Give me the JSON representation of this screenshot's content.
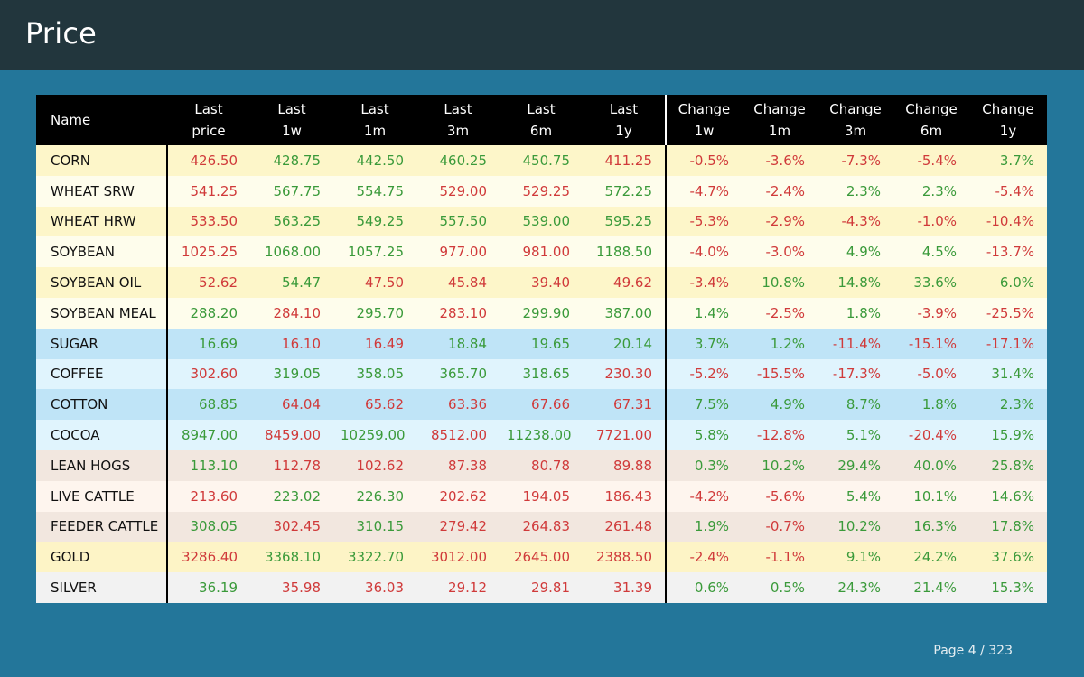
{
  "page": {
    "title": "Price",
    "footer": "Page 4  /  323"
  },
  "colors": {
    "header_bg": "#22363d",
    "page_bg": "#23769a",
    "positive": "#3a9a3a",
    "negative": "#d03a3a"
  },
  "table": {
    "headers": [
      [
        "Name",
        ""
      ],
      [
        "Last",
        "price"
      ],
      [
        "Last",
        "1w"
      ],
      [
        "Last",
        "1m"
      ],
      [
        "Last",
        "3m"
      ],
      [
        "Last",
        "6m"
      ],
      [
        "Last",
        "1y"
      ],
      [
        "Change",
        "1w"
      ],
      [
        "Change",
        "1m"
      ],
      [
        "Change",
        "3m"
      ],
      [
        "Change",
        "6m"
      ],
      [
        "Change",
        "1y"
      ]
    ],
    "rows": [
      {
        "group": "g-grain-a",
        "name": "CORN",
        "cells": [
          [
            "426.50",
            "neg"
          ],
          [
            "428.75",
            "pos"
          ],
          [
            "442.50",
            "pos"
          ],
          [
            "460.25",
            "pos"
          ],
          [
            "450.75",
            "pos"
          ],
          [
            "411.25",
            "neg"
          ],
          [
            "-0.5%",
            "neg"
          ],
          [
            "-3.6%",
            "neg"
          ],
          [
            "-7.3%",
            "neg"
          ],
          [
            "-5.4%",
            "neg"
          ],
          [
            "3.7%",
            "pos"
          ]
        ]
      },
      {
        "group": "g-grain-b",
        "name": "WHEAT SRW",
        "cells": [
          [
            "541.25",
            "neg"
          ],
          [
            "567.75",
            "pos"
          ],
          [
            "554.75",
            "pos"
          ],
          [
            "529.00",
            "neg"
          ],
          [
            "529.25",
            "neg"
          ],
          [
            "572.25",
            "pos"
          ],
          [
            "-4.7%",
            "neg"
          ],
          [
            "-2.4%",
            "neg"
          ],
          [
            "2.3%",
            "pos"
          ],
          [
            "2.3%",
            "pos"
          ],
          [
            "-5.4%",
            "neg"
          ]
        ]
      },
      {
        "group": "g-grain-a",
        "name": "WHEAT HRW",
        "cells": [
          [
            "533.50",
            "neg"
          ],
          [
            "563.25",
            "pos"
          ],
          [
            "549.25",
            "pos"
          ],
          [
            "557.50",
            "pos"
          ],
          [
            "539.00",
            "pos"
          ],
          [
            "595.25",
            "pos"
          ],
          [
            "-5.3%",
            "neg"
          ],
          [
            "-2.9%",
            "neg"
          ],
          [
            "-4.3%",
            "neg"
          ],
          [
            "-1.0%",
            "neg"
          ],
          [
            "-10.4%",
            "neg"
          ]
        ]
      },
      {
        "group": "g-grain-b",
        "name": "SOYBEAN",
        "cells": [
          [
            "1025.25",
            "neg"
          ],
          [
            "1068.00",
            "pos"
          ],
          [
            "1057.25",
            "pos"
          ],
          [
            "977.00",
            "neg"
          ],
          [
            "981.00",
            "neg"
          ],
          [
            "1188.50",
            "pos"
          ],
          [
            "-4.0%",
            "neg"
          ],
          [
            "-3.0%",
            "neg"
          ],
          [
            "4.9%",
            "pos"
          ],
          [
            "4.5%",
            "pos"
          ],
          [
            "-13.7%",
            "neg"
          ]
        ]
      },
      {
        "group": "g-grain-a",
        "name": "SOYBEAN OIL",
        "cells": [
          [
            "52.62",
            "neg"
          ],
          [
            "54.47",
            "pos"
          ],
          [
            "47.50",
            "neg"
          ],
          [
            "45.84",
            "neg"
          ],
          [
            "39.40",
            "neg"
          ],
          [
            "49.62",
            "neg"
          ],
          [
            "-3.4%",
            "neg"
          ],
          [
            "10.8%",
            "pos"
          ],
          [
            "14.8%",
            "pos"
          ],
          [
            "33.6%",
            "pos"
          ],
          [
            "6.0%",
            "pos"
          ]
        ]
      },
      {
        "group": "g-grain-b",
        "name": "SOYBEAN MEAL",
        "cells": [
          [
            "288.20",
            "pos"
          ],
          [
            "284.10",
            "neg"
          ],
          [
            "295.70",
            "pos"
          ],
          [
            "283.10",
            "neg"
          ],
          [
            "299.90",
            "pos"
          ],
          [
            "387.00",
            "pos"
          ],
          [
            "1.4%",
            "pos"
          ],
          [
            "-2.5%",
            "neg"
          ],
          [
            "1.8%",
            "pos"
          ],
          [
            "-3.9%",
            "neg"
          ],
          [
            "-25.5%",
            "neg"
          ]
        ]
      },
      {
        "group": "g-soft-a",
        "name": "SUGAR",
        "cells": [
          [
            "16.69",
            "pos"
          ],
          [
            "16.10",
            "neg"
          ],
          [
            "16.49",
            "neg"
          ],
          [
            "18.84",
            "pos"
          ],
          [
            "19.65",
            "pos"
          ],
          [
            "20.14",
            "pos"
          ],
          [
            "3.7%",
            "pos"
          ],
          [
            "1.2%",
            "pos"
          ],
          [
            "-11.4%",
            "neg"
          ],
          [
            "-15.1%",
            "neg"
          ],
          [
            "-17.1%",
            "neg"
          ]
        ]
      },
      {
        "group": "g-soft-b",
        "name": "COFFEE",
        "cells": [
          [
            "302.60",
            "neg"
          ],
          [
            "319.05",
            "pos"
          ],
          [
            "358.05",
            "pos"
          ],
          [
            "365.70",
            "pos"
          ],
          [
            "318.65",
            "pos"
          ],
          [
            "230.30",
            "neg"
          ],
          [
            "-5.2%",
            "neg"
          ],
          [
            "-15.5%",
            "neg"
          ],
          [
            "-17.3%",
            "neg"
          ],
          [
            "-5.0%",
            "neg"
          ],
          [
            "31.4%",
            "pos"
          ]
        ]
      },
      {
        "group": "g-soft-a",
        "name": "COTTON",
        "cells": [
          [
            "68.85",
            "pos"
          ],
          [
            "64.04",
            "neg"
          ],
          [
            "65.62",
            "neg"
          ],
          [
            "63.36",
            "neg"
          ],
          [
            "67.66",
            "neg"
          ],
          [
            "67.31",
            "neg"
          ],
          [
            "7.5%",
            "pos"
          ],
          [
            "4.9%",
            "pos"
          ],
          [
            "8.7%",
            "pos"
          ],
          [
            "1.8%",
            "pos"
          ],
          [
            "2.3%",
            "pos"
          ]
        ]
      },
      {
        "group": "g-soft-b",
        "name": "COCOA",
        "cells": [
          [
            "8947.00",
            "pos"
          ],
          [
            "8459.00",
            "neg"
          ],
          [
            "10259.00",
            "pos"
          ],
          [
            "8512.00",
            "neg"
          ],
          [
            "11238.00",
            "pos"
          ],
          [
            "7721.00",
            "neg"
          ],
          [
            "5.8%",
            "pos"
          ],
          [
            "-12.8%",
            "neg"
          ],
          [
            "5.1%",
            "pos"
          ],
          [
            "-20.4%",
            "neg"
          ],
          [
            "15.9%",
            "pos"
          ]
        ]
      },
      {
        "group": "g-meat-a",
        "name": "LEAN HOGS",
        "cells": [
          [
            "113.10",
            "pos"
          ],
          [
            "112.78",
            "neg"
          ],
          [
            "102.62",
            "neg"
          ],
          [
            "87.38",
            "neg"
          ],
          [
            "80.78",
            "neg"
          ],
          [
            "89.88",
            "neg"
          ],
          [
            "0.3%",
            "pos"
          ],
          [
            "10.2%",
            "pos"
          ],
          [
            "29.4%",
            "pos"
          ],
          [
            "40.0%",
            "pos"
          ],
          [
            "25.8%",
            "pos"
          ]
        ]
      },
      {
        "group": "g-meat-b",
        "name": "LIVE CATTLE",
        "cells": [
          [
            "213.60",
            "neg"
          ],
          [
            "223.02",
            "pos"
          ],
          [
            "226.30",
            "pos"
          ],
          [
            "202.62",
            "neg"
          ],
          [
            "194.05",
            "neg"
          ],
          [
            "186.43",
            "neg"
          ],
          [
            "-4.2%",
            "neg"
          ],
          [
            "-5.6%",
            "neg"
          ],
          [
            "5.4%",
            "pos"
          ],
          [
            "10.1%",
            "pos"
          ],
          [
            "14.6%",
            "pos"
          ]
        ]
      },
      {
        "group": "g-meat-a",
        "name": "FEEDER CATTLE",
        "cells": [
          [
            "308.05",
            "pos"
          ],
          [
            "302.45",
            "neg"
          ],
          [
            "310.15",
            "pos"
          ],
          [
            "279.42",
            "neg"
          ],
          [
            "264.83",
            "neg"
          ],
          [
            "261.48",
            "neg"
          ],
          [
            "1.9%",
            "pos"
          ],
          [
            "-0.7%",
            "neg"
          ],
          [
            "10.2%",
            "pos"
          ],
          [
            "16.3%",
            "pos"
          ],
          [
            "17.8%",
            "pos"
          ]
        ]
      },
      {
        "group": "g-gold",
        "name": "GOLD",
        "cells": [
          [
            "3286.40",
            "neg"
          ],
          [
            "3368.10",
            "pos"
          ],
          [
            "3322.70",
            "pos"
          ],
          [
            "3012.00",
            "neg"
          ],
          [
            "2645.00",
            "neg"
          ],
          [
            "2388.50",
            "neg"
          ],
          [
            "-2.4%",
            "neg"
          ],
          [
            "-1.1%",
            "neg"
          ],
          [
            "9.1%",
            "pos"
          ],
          [
            "24.2%",
            "pos"
          ],
          [
            "37.6%",
            "pos"
          ]
        ]
      },
      {
        "group": "g-silver",
        "name": "SILVER",
        "cells": [
          [
            "36.19",
            "pos"
          ],
          [
            "35.98",
            "neg"
          ],
          [
            "36.03",
            "neg"
          ],
          [
            "29.12",
            "neg"
          ],
          [
            "29.81",
            "neg"
          ],
          [
            "31.39",
            "neg"
          ],
          [
            "0.6%",
            "pos"
          ],
          [
            "0.5%",
            "pos"
          ],
          [
            "24.3%",
            "pos"
          ],
          [
            "21.4%",
            "pos"
          ],
          [
            "15.3%",
            "pos"
          ]
        ]
      }
    ]
  }
}
